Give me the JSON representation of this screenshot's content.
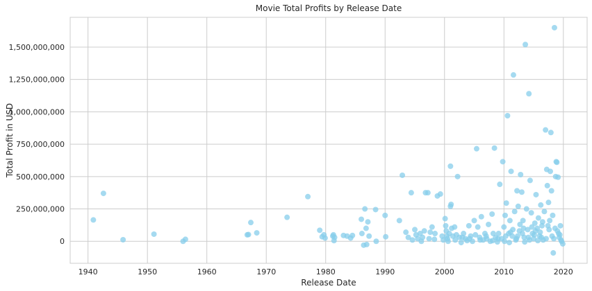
{
  "chart_data": {
    "type": "scatter",
    "title": "Movie Total Profits by Release Date",
    "xlabel": "Release Date",
    "ylabel": "Total Profit in USD",
    "xlim": [
      1937,
      2024
    ],
    "ylim": [
      -170000000,
      1730000000
    ],
    "x_ticks": [
      1940,
      1950,
      1960,
      1970,
      1980,
      1990,
      2000,
      2010,
      2020
    ],
    "y_ticks": [
      0,
      250000000,
      500000000,
      750000000,
      1000000000,
      1250000000,
      1500000000
    ],
    "y_tick_labels": [
      "0",
      "250,000,000",
      "500,000,000",
      "750,000,000",
      "1,000,000,000",
      "1,250,000,000",
      "1,500,000,000"
    ],
    "grid": true,
    "marker_color": "#87CEEB",
    "points": [
      [
        1940.9,
        165000000
      ],
      [
        1942.6,
        370000000
      ],
      [
        1945.9,
        12000000
      ],
      [
        1951.1,
        55000000
      ],
      [
        1956.0,
        0
      ],
      [
        1956.4,
        15000000
      ],
      [
        1966.8,
        50000000
      ],
      [
        1967.0,
        52000000
      ],
      [
        1967.4,
        145000000
      ],
      [
        1968.4,
        65000000
      ],
      [
        1973.5,
        185000000
      ],
      [
        1977.0,
        345000000
      ],
      [
        1979.0,
        85000000
      ],
      [
        1979.4,
        35000000
      ],
      [
        1979.7,
        50000000
      ],
      [
        1979.9,
        25000000
      ],
      [
        1981.2,
        40000000
      ],
      [
        1981.3,
        50000000
      ],
      [
        1981.5,
        30000000
      ],
      [
        1981.4,
        5000000
      ],
      [
        1983.0,
        45000000
      ],
      [
        1983.6,
        40000000
      ],
      [
        1984.2,
        25000000
      ],
      [
        1984.5,
        45000000
      ],
      [
        1986.0,
        170000000
      ],
      [
        1986.1,
        60000000
      ],
      [
        1986.4,
        -30000000
      ],
      [
        1986.6,
        250000000
      ],
      [
        1986.8,
        100000000
      ],
      [
        1986.9,
        -25000000
      ],
      [
        1987.1,
        150000000
      ],
      [
        1987.3,
        40000000
      ],
      [
        1988.4,
        245000000
      ],
      [
        1988.5,
        0
      ],
      [
        1990.0,
        200000000
      ],
      [
        1990.1,
        35000000
      ],
      [
        1992.4,
        160000000
      ],
      [
        1992.9,
        510000000
      ],
      [
        1993.5,
        70000000
      ],
      [
        1993.9,
        30000000
      ],
      [
        1994.4,
        375000000
      ],
      [
        1994.6,
        10000000
      ],
      [
        1995.0,
        90000000
      ],
      [
        1995.2,
        50000000
      ],
      [
        1995.5,
        20000000
      ],
      [
        1995.9,
        60000000
      ],
      [
        1996.1,
        0
      ],
      [
        1996.3,
        30000000
      ],
      [
        1996.6,
        80000000
      ],
      [
        1996.8,
        375000000
      ],
      [
        1997.2,
        375000000
      ],
      [
        1997.4,
        20000000
      ],
      [
        1997.6,
        70000000
      ],
      [
        1997.9,
        110000000
      ],
      [
        1998.3,
        15000000
      ],
      [
        1998.4,
        60000000
      ],
      [
        1998.8,
        350000000
      ],
      [
        1999.3,
        365000000
      ],
      [
        1999.6,
        40000000
      ],
      [
        1999.8,
        10000000
      ],
      [
        2000.1,
        175000000
      ],
      [
        2000.2,
        120000000
      ],
      [
        2000.3,
        80000000
      ],
      [
        2000.4,
        40000000
      ],
      [
        2000.5,
        20000000
      ],
      [
        2000.6,
        0
      ],
      [
        2000.8,
        60000000
      ],
      [
        2001.0,
        270000000
      ],
      [
        2001.1,
        285000000
      ],
      [
        2001.2,
        100000000
      ],
      [
        2001.0,
        580000000
      ],
      [
        2001.4,
        40000000
      ],
      [
        2001.7,
        110000000
      ],
      [
        2001.8,
        10000000
      ],
      [
        2002.2,
        500000000
      ],
      [
        2002.5,
        30000000
      ],
      [
        2002.8,
        -10000000
      ],
      [
        2003.2,
        60000000
      ],
      [
        2003.5,
        20000000
      ],
      [
        2003.8,
        5000000
      ],
      [
        2004.1,
        120000000
      ],
      [
        2004.4,
        40000000
      ],
      [
        2004.7,
        0
      ],
      [
        2005.0,
        160000000
      ],
      [
        2005.4,
        715000000
      ],
      [
        2005.6,
        110000000
      ],
      [
        2005.9,
        30000000
      ],
      [
        2006.2,
        190000000
      ],
      [
        2006.5,
        10000000
      ],
      [
        2006.8,
        60000000
      ],
      [
        2007.1,
        20000000
      ],
      [
        2007.4,
        130000000
      ],
      [
        2007.7,
        0
      ],
      [
        2008.0,
        210000000
      ],
      [
        2008.2,
        60000000
      ],
      [
        2008.4,
        720000000
      ],
      [
        2008.6,
        30000000
      ],
      [
        2008.9,
        -5000000
      ],
      [
        2009.1,
        60000000
      ],
      [
        2009.3,
        440000000
      ],
      [
        2009.6,
        20000000
      ],
      [
        2009.8,
        615000000
      ],
      [
        2010.0,
        110000000
      ],
      [
        2010.2,
        200000000
      ],
      [
        2010.4,
        295000000
      ],
      [
        2010.6,
        970000000
      ],
      [
        2010.8,
        60000000
      ],
      [
        2011.0,
        160000000
      ],
      [
        2011.2,
        540000000
      ],
      [
        2011.4,
        40000000
      ],
      [
        2011.6,
        1285000000
      ],
      [
        2011.8,
        230000000
      ],
      [
        2012.0,
        10000000
      ],
      [
        2012.2,
        390000000
      ],
      [
        2012.4,
        270000000
      ],
      [
        2012.6,
        80000000
      ],
      [
        2012.8,
        515000000
      ],
      [
        2013.0,
        380000000
      ],
      [
        2013.2,
        160000000
      ],
      [
        2013.4,
        30000000
      ],
      [
        2013.6,
        1520000000
      ],
      [
        2013.8,
        250000000
      ],
      [
        2014.0,
        90000000
      ],
      [
        2014.2,
        1140000000
      ],
      [
        2014.4,
        470000000
      ],
      [
        2014.6,
        220000000
      ],
      [
        2014.8,
        60000000
      ],
      [
        2015.0,
        20000000
      ],
      [
        2015.2,
        140000000
      ],
      [
        2015.4,
        360000000
      ],
      [
        2015.6,
        100000000
      ],
      [
        2015.8,
        180000000
      ],
      [
        2016.0,
        40000000
      ],
      [
        2016.2,
        280000000
      ],
      [
        2016.4,
        120000000
      ],
      [
        2016.6,
        10000000
      ],
      [
        2016.8,
        230000000
      ],
      [
        2017.0,
        860000000
      ],
      [
        2017.2,
        555000000
      ],
      [
        2017.3,
        430000000
      ],
      [
        2017.5,
        300000000
      ],
      [
        2017.7,
        160000000
      ],
      [
        2017.8,
        540000000
      ],
      [
        2017.9,
        840000000
      ],
      [
        2018.0,
        390000000
      ],
      [
        2018.2,
        200000000
      ],
      [
        2018.3,
        -90000000
      ],
      [
        2018.5,
        1650000000
      ],
      [
        2018.7,
        500000000
      ],
      [
        2018.8,
        615000000
      ],
      [
        2018.9,
        610000000
      ],
      [
        2019.0,
        80000000
      ],
      [
        2019.1,
        495000000
      ],
      [
        2019.3,
        30000000
      ],
      [
        2019.5,
        120000000
      ],
      [
        2019.7,
        0
      ],
      [
        2019.9,
        -20000000
      ],
      [
        2010.3,
        40000000
      ],
      [
        2010.9,
        -10000000
      ],
      [
        2011.5,
        90000000
      ],
      [
        2012.1,
        20000000
      ],
      [
        2012.7,
        130000000
      ],
      [
        2013.1,
        60000000
      ],
      [
        2013.5,
        -5000000
      ],
      [
        2014.1,
        30000000
      ],
      [
        2014.7,
        110000000
      ],
      [
        2015.1,
        50000000
      ],
      [
        2015.7,
        5000000
      ],
      [
        2016.1,
        70000000
      ],
      [
        2016.5,
        150000000
      ],
      [
        2017.1,
        20000000
      ],
      [
        2017.6,
        90000000
      ],
      [
        2018.1,
        40000000
      ],
      [
        2018.6,
        100000000
      ],
      [
        2019.2,
        60000000
      ],
      [
        2019.6,
        10000000
      ],
      [
        2010.1,
        0
      ],
      [
        2011.1,
        70000000
      ],
      [
        2012.3,
        40000000
      ],
      [
        2013.3,
        100000000
      ],
      [
        2014.3,
        10000000
      ],
      [
        2015.3,
        80000000
      ],
      [
        2016.3,
        30000000
      ],
      [
        2017.4,
        120000000
      ],
      [
        2018.4,
        20000000
      ],
      [
        2019.4,
        50000000
      ],
      [
        2009.0,
        20000000
      ],
      [
        2008.1,
        5000000
      ],
      [
        2007.0,
        40000000
      ],
      [
        2006.0,
        10000000
      ],
      [
        2005.2,
        50000000
      ],
      [
        2004.2,
        20000000
      ],
      [
        2003.0,
        30000000
      ],
      [
        2002.0,
        50000000
      ]
    ]
  }
}
